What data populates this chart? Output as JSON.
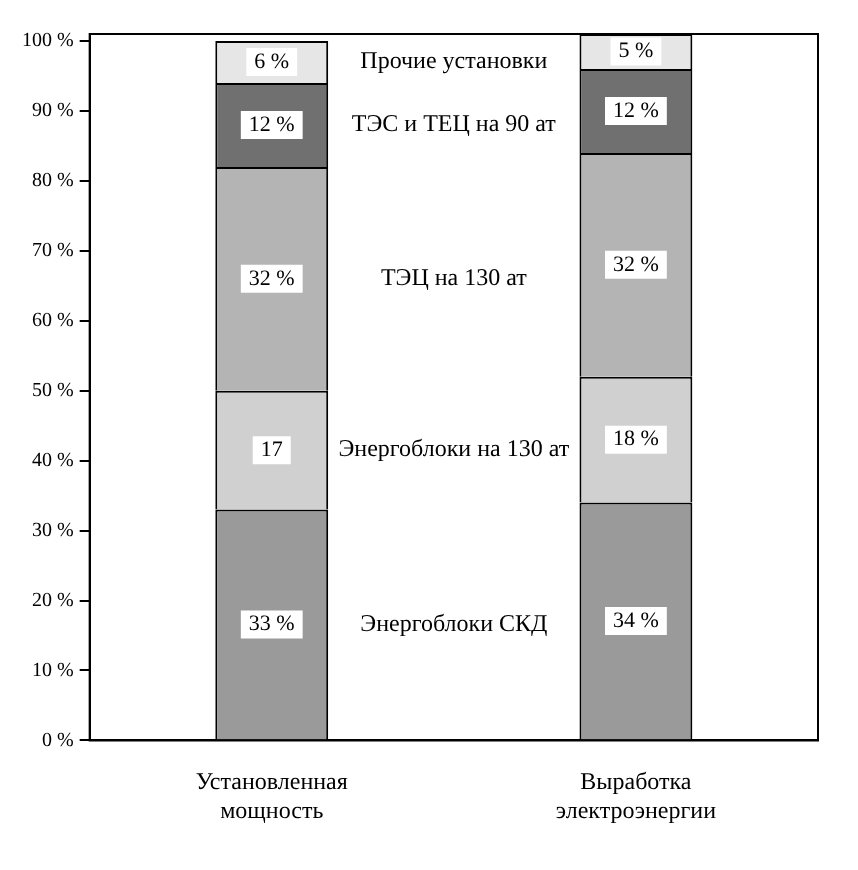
{
  "chart_data": {
    "type": "bar",
    "stacked": true,
    "categories": [
      "Установленная мощность",
      "Выработка электроэнергии"
    ],
    "series": [
      {
        "name": "Энергоблоки СКД",
        "color": "#9a9a9a",
        "values": [
          33,
          34
        ],
        "value_labels": [
          "33 %",
          "34 %"
        ]
      },
      {
        "name": "Энергоблоки на 130 ат",
        "color": "#d0d0d0",
        "values": [
          17,
          18
        ],
        "value_labels": [
          "17",
          "18 %"
        ]
      },
      {
        "name": "ТЭЦ на 130 ат",
        "color": "#b4b4b4",
        "values": [
          32,
          32
        ],
        "value_labels": [
          "32 %",
          "32 %"
        ]
      },
      {
        "name": "ТЭС и ТЕЦ на 90 ат",
        "color": "#707070",
        "values": [
          12,
          12
        ],
        "value_labels": [
          "12 %",
          "12 %"
        ]
      },
      {
        "name": "Прочие установки",
        "color": "#e6e6e6",
        "values": [
          6,
          5
        ],
        "value_labels": [
          "6 %",
          "5 %"
        ]
      }
    ],
    "ylim": [
      0,
      101
    ],
    "yticks": [
      {
        "value": 0,
        "label": "0 %"
      },
      {
        "value": 10,
        "label": "10 %"
      },
      {
        "value": 20,
        "label": "20 %"
      },
      {
        "value": 30,
        "label": "30 %"
      },
      {
        "value": 40,
        "label": "40 %"
      },
      {
        "value": 50,
        "label": "50 %"
      },
      {
        "value": 60,
        "label": "60 %"
      },
      {
        "value": 70,
        "label": "70 %"
      },
      {
        "value": 80,
        "label": "80 %"
      },
      {
        "value": 90,
        "label": "90 %"
      },
      {
        "value": 100,
        "label": "100 %"
      }
    ],
    "grid": false,
    "legend": false
  }
}
